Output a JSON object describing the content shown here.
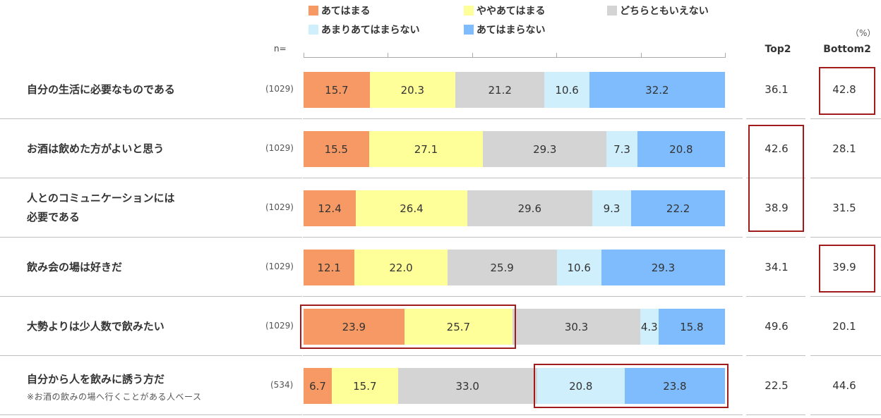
{
  "chart_data": {
    "type": "bar",
    "stacked": "100%",
    "unit_label": "（%）",
    "n_header": "n=",
    "legend": [
      {
        "label": "あてはまる",
        "color": "#f79964"
      },
      {
        "label": "ややあてはまる",
        "color": "#ffff99"
      },
      {
        "label": "どちらともいえない",
        "color": "#d4d4d4"
      },
      {
        "label": "あまりあてはまらない",
        "color": "#cfeffc"
      },
      {
        "label": "あてはまらない",
        "color": "#7fbcfd"
      }
    ],
    "columns": {
      "top2": "Top2",
      "bottom2": "Bottom2"
    },
    "rows": [
      {
        "label_lines": [
          "自分の生活に必要なものである"
        ],
        "note": "",
        "n": "(1029)",
        "values": [
          15.7,
          20.3,
          21.2,
          10.6,
          32.2
        ],
        "labels": [
          "15.7",
          "20.3",
          "21.2",
          "10.6",
          "32.2"
        ],
        "top2": "36.1",
        "bottom2": "42.8"
      },
      {
        "label_lines": [
          "お酒は飲めた方がよいと思う"
        ],
        "note": "",
        "n": "(1029)",
        "values": [
          15.5,
          27.1,
          29.3,
          7.3,
          20.8
        ],
        "labels": [
          "15.5",
          "27.1",
          "29.3",
          "7.3",
          "20.8"
        ],
        "top2": "42.6",
        "bottom2": "28.1"
      },
      {
        "label_lines": [
          "人とのコミュニケーションには",
          "必要である"
        ],
        "note": "",
        "n": "(1029)",
        "values": [
          12.4,
          26.4,
          29.6,
          9.3,
          22.2
        ],
        "labels": [
          "12.4",
          "26.4",
          "29.6",
          "9.3",
          "22.2"
        ],
        "top2": "38.9",
        "bottom2": "31.5"
      },
      {
        "label_lines": [
          "飲み会の場は好きだ"
        ],
        "note": "",
        "n": "(1029)",
        "values": [
          12.1,
          22.0,
          25.9,
          10.6,
          29.3
        ],
        "labels": [
          "12.1",
          "22.0",
          "25.9",
          "10.6",
          "29.3"
        ],
        "top2": "34.1",
        "bottom2": "39.9"
      },
      {
        "label_lines": [
          "大勢よりは少人数で飲みたい"
        ],
        "note": "",
        "n": "(1029)",
        "values": [
          23.9,
          25.7,
          30.3,
          4.3,
          15.8
        ],
        "labels": [
          "23.9",
          "25.7",
          "30.3",
          "4.3",
          "15.8"
        ],
        "top2": "49.6",
        "bottom2": "20.1"
      },
      {
        "label_lines": [
          "自分から人を飲みに誘う方だ"
        ],
        "note": "※お酒の飲みの場へ行くことがある人ベース",
        "n": "(534)",
        "values": [
          6.7,
          15.7,
          33.0,
          20.8,
          23.8
        ],
        "labels": [
          "6.7",
          "15.7",
          "33.0",
          "20.8",
          "23.8"
        ],
        "top2": "22.5",
        "bottom2": "44.6"
      }
    ],
    "highlights": [
      {
        "row": 0,
        "target": "bottom2"
      },
      {
        "row": 1,
        "target": "top2",
        "row_end": 2
      },
      {
        "row": 3,
        "target": "bottom2"
      },
      {
        "row": 4,
        "target": "segments",
        "from": 0,
        "to": 1
      },
      {
        "row": 5,
        "target": "segments",
        "from": 3,
        "to": 4
      }
    ]
  }
}
